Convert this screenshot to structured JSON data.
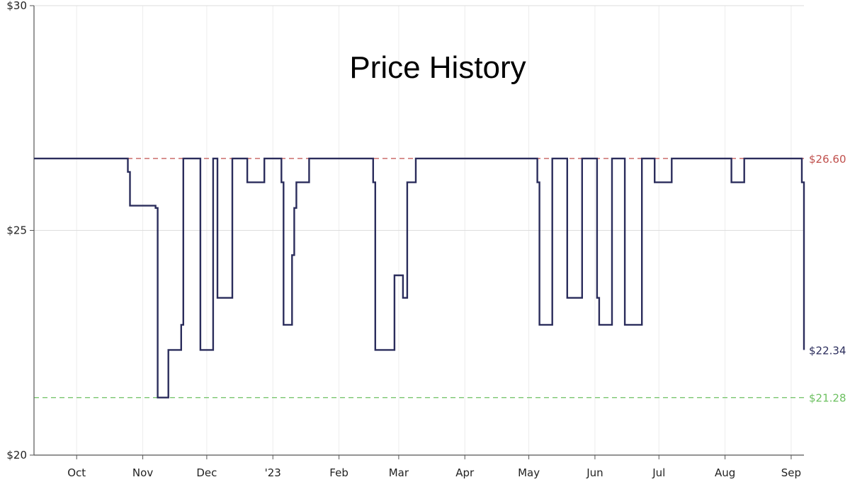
{
  "chart_data": {
    "type": "line",
    "step": true,
    "title": "Price History",
    "xlabel": "",
    "ylabel": "",
    "ylim": [
      20,
      30
    ],
    "xlim": [
      "2022-09-11",
      "2023-09-07"
    ],
    "y_ticks": [
      20,
      25,
      30
    ],
    "y_tick_labels": [
      "$20",
      "$25",
      "$30"
    ],
    "x_ticks": [
      "2022-10-01",
      "2022-11-01",
      "2022-12-01",
      "2023-01-01",
      "2023-02-01",
      "2023-03-01",
      "2023-04-01",
      "2023-05-01",
      "2023-06-01",
      "2023-07-01",
      "2023-08-01",
      "2023-09-01"
    ],
    "x_tick_labels": [
      "Oct",
      "Nov",
      "Dec",
      "'23",
      "Feb",
      "Mar",
      "Apr",
      "May",
      "Jun",
      "Jul",
      "Aug",
      "Sep"
    ],
    "grid": true,
    "series": [
      {
        "color": "#2b2d5c",
        "points": [
          [
            "2022-09-11",
            26.6
          ],
          [
            "2022-10-25",
            26.3
          ],
          [
            "2022-10-26",
            25.55
          ],
          [
            "2022-11-07",
            25.5
          ],
          [
            "2022-11-08",
            21.28
          ],
          [
            "2022-11-13",
            22.34
          ],
          [
            "2022-11-19",
            22.9
          ],
          [
            "2022-11-20",
            26.6
          ],
          [
            "2022-11-28",
            22.34
          ],
          [
            "2022-12-04",
            26.6
          ],
          [
            "2022-12-06",
            23.5
          ],
          [
            "2022-12-13",
            26.6
          ],
          [
            "2022-12-20",
            26.07
          ],
          [
            "2022-12-28",
            26.6
          ],
          [
            "2023-01-05",
            26.07
          ],
          [
            "2023-01-06",
            22.9
          ],
          [
            "2023-01-10",
            24.45
          ],
          [
            "2023-01-11",
            25.5
          ],
          [
            "2023-01-12",
            26.07
          ],
          [
            "2023-01-18",
            26.6
          ],
          [
            "2023-02-17",
            26.07
          ],
          [
            "2023-02-18",
            22.34
          ],
          [
            "2023-02-27",
            24.0
          ],
          [
            "2023-03-03",
            23.5
          ],
          [
            "2023-03-05",
            26.07
          ],
          [
            "2023-03-09",
            26.6
          ],
          [
            "2023-05-05",
            26.07
          ],
          [
            "2023-05-06",
            22.9
          ],
          [
            "2023-05-12",
            26.6
          ],
          [
            "2023-05-19",
            23.5
          ],
          [
            "2023-05-26",
            26.6
          ],
          [
            "2023-06-02",
            23.5
          ],
          [
            "2023-06-03",
            22.9
          ],
          [
            "2023-06-09",
            26.6
          ],
          [
            "2023-06-15",
            22.9
          ],
          [
            "2023-06-23",
            26.6
          ],
          [
            "2023-06-29",
            26.07
          ],
          [
            "2023-07-07",
            26.6
          ],
          [
            "2023-08-04",
            26.07
          ],
          [
            "2023-08-10",
            26.6
          ],
          [
            "2023-09-06",
            26.07
          ],
          [
            "2023-09-07",
            22.34
          ]
        ]
      }
    ],
    "reference_lines": [
      {
        "value": 26.6,
        "label": "$26.60",
        "color": "#c0504d",
        "style": "dashed"
      },
      {
        "value": 21.28,
        "label": "$21.28",
        "color": "#6cc060",
        "style": "dashed"
      }
    ],
    "end_label": {
      "value": 22.34,
      "label": "$22.34",
      "color": "#2b2d5c"
    }
  }
}
